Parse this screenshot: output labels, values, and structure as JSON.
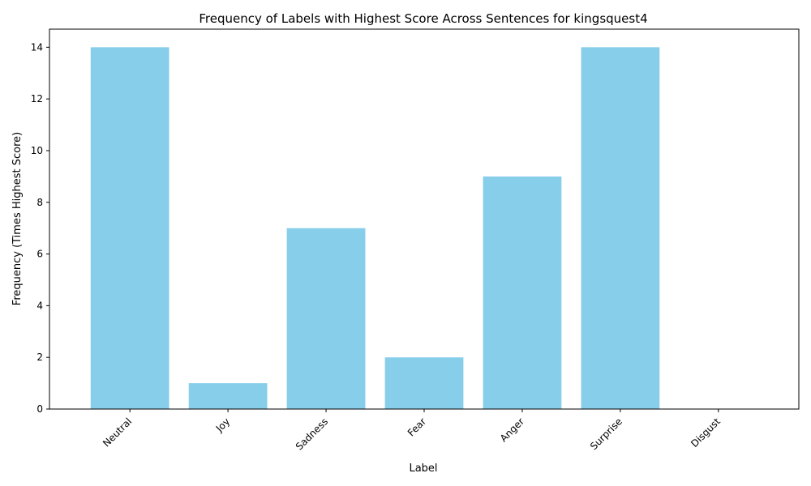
{
  "chart_data": {
    "type": "bar",
    "title": "Frequency of Labels with Highest Score Across Sentences for kingsquest4",
    "xlabel": "Label",
    "ylabel": "Frequency (Times Highest Score)",
    "categories": [
      "Neutral",
      "Joy",
      "Sadness",
      "Fear",
      "Anger",
      "Surprise",
      "Disgust"
    ],
    "values": [
      14,
      1,
      7,
      2,
      9,
      14,
      0
    ],
    "ylim": [
      0,
      14.7
    ],
    "yticks": [
      0,
      2,
      4,
      6,
      8,
      10,
      12,
      14
    ],
    "bar_color": "#87CEEB",
    "grid": false,
    "x_tick_rotation": "45 degrees, right-aligned"
  }
}
